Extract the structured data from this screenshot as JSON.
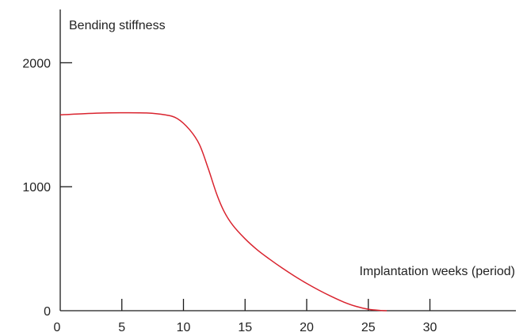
{
  "chart_data": {
    "type": "line",
    "title": "",
    "xlabel": "Implantation weeks (period)",
    "ylabel": "Bending stiffness",
    "xlim": [
      0,
      37
    ],
    "ylim": [
      0,
      2400
    ],
    "x_ticks": [
      0,
      5,
      10,
      15,
      20,
      25,
      30
    ],
    "x_tick_labels": [
      "0",
      "5",
      "10",
      "15",
      "20",
      "25",
      "30"
    ],
    "y_ticks": [
      0,
      1000,
      2000
    ],
    "y_tick_labels": [
      "0",
      "1000",
      "2000"
    ],
    "grid": false,
    "legend": "none",
    "series": [
      {
        "color": "#d9232e",
        "x": [
          0,
          2,
          4,
          5,
          7,
          8.5,
          9.5,
          10.5,
          11.3,
          12,
          12.7,
          13.3,
          14,
          15,
          16,
          17,
          18,
          19,
          20,
          21,
          22,
          23,
          24,
          25,
          26,
          26.5
        ],
        "y": [
          1580,
          1590,
          1596,
          1597,
          1595,
          1580,
          1550,
          1460,
          1340,
          1150,
          940,
          800,
          690,
          580,
          490,
          415,
          345,
          280,
          220,
          165,
          115,
          70,
          35,
          12,
          2,
          0
        ]
      }
    ]
  }
}
